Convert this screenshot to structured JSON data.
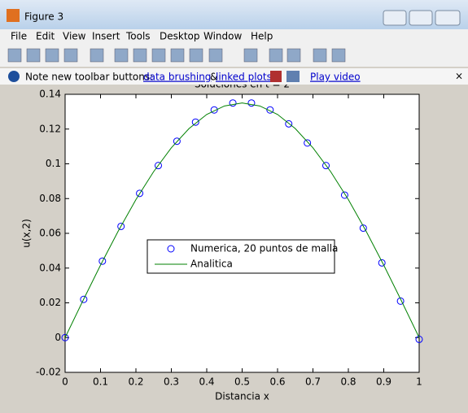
{
  "window": {
    "title": "Figure 3",
    "menu": [
      "File",
      "Edit",
      "View",
      "Insert",
      "Tools",
      "Desktop",
      "Window",
      "Help"
    ],
    "infobar": {
      "note": "Note new toolbar buttons:",
      "brushing": "data brushing",
      "and": "&",
      "linked": "linked plots",
      "video": "Play video"
    }
  },
  "chart_data": {
    "type": "line",
    "title": "Soluciones en t = 2",
    "xlabel": "Distancia x",
    "ylabel": "u(x,2)",
    "xlim": [
      0,
      1
    ],
    "xticks": [
      0,
      0.1,
      0.2,
      0.3,
      0.4,
      0.5,
      0.6,
      0.7,
      0.8,
      0.9,
      1
    ],
    "ylim": [
      -0.02,
      0.14
    ],
    "yticks": [
      -0.02,
      0,
      0.02,
      0.04,
      0.06,
      0.08,
      0.1,
      0.12,
      0.14
    ],
    "series": [
      {
        "name": "Numerica, 20 puntos de malla",
        "color": "#0000ff",
        "marker": "circle",
        "x": [
          0,
          0.0526,
          0.1053,
          0.1579,
          0.2105,
          0.2632,
          0.3158,
          0.3684,
          0.4211,
          0.4737,
          0.5263,
          0.5789,
          0.6316,
          0.6842,
          0.7368,
          0.7895,
          0.8421,
          0.8947,
          0.9474,
          1
        ],
        "values": [
          0,
          0.022,
          0.044,
          0.064,
          0.083,
          0.099,
          0.113,
          0.124,
          0.131,
          0.135,
          0.135,
          0.131,
          0.123,
          0.112,
          0.099,
          0.082,
          0.063,
          0.043,
          0.021,
          -0.001
        ]
      },
      {
        "name": "Analitica",
        "color": "#008000",
        "marker": "none",
        "x": [
          0,
          0.05,
          0.1,
          0.15,
          0.2,
          0.25,
          0.3,
          0.35,
          0.4,
          0.45,
          0.5,
          0.55,
          0.6,
          0.65,
          0.7,
          0.75,
          0.8,
          0.85,
          0.9,
          0.95,
          1
        ],
        "values": [
          0,
          0.0211,
          0.0417,
          0.0613,
          0.0794,
          0.0955,
          0.1092,
          0.1203,
          0.1284,
          0.1333,
          0.135,
          0.1333,
          0.1284,
          0.1203,
          0.1092,
          0.0955,
          0.0794,
          0.0613,
          0.0417,
          0.0211,
          0
        ]
      }
    ]
  }
}
